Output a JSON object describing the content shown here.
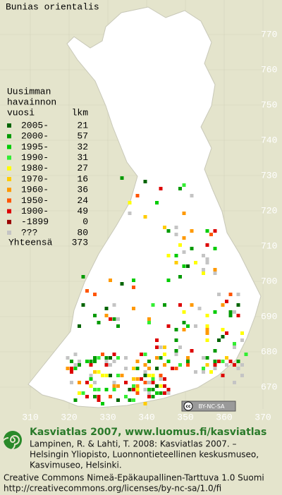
{
  "title": "Bunias orientalis",
  "legend": {
    "heading": [
      "Uusimman",
      "havainnon"
    ],
    "col_year": "vuosi",
    "col_count": "lkm",
    "rows": [
      {
        "label": "2005-",
        "count": 21,
        "color": "#006400"
      },
      {
        "label": "2000-",
        "count": 57,
        "color": "#009a00"
      },
      {
        "label": "1995-",
        "count": 32,
        "color": "#00cc00"
      },
      {
        "label": "1990-",
        "count": 31,
        "color": "#33ee33"
      },
      {
        "label": "1980-",
        "count": 27,
        "color": "#ffff00"
      },
      {
        "label": "1970-",
        "count": 16,
        "color": "#ffcc00"
      },
      {
        "label": "1960-",
        "count": 36,
        "color": "#ff9900"
      },
      {
        "label": "1950-",
        "count": 24,
        "color": "#ff5500"
      },
      {
        "label": "1900-",
        "count": 49,
        "color": "#dd0000"
      },
      {
        "label": "-1899",
        "count": 0,
        "color": "#990000"
      },
      {
        "label": "???",
        "count": 80,
        "color": "#c4c4c4"
      }
    ],
    "total_label": "Yhteensä",
    "total": 373
  },
  "map": {
    "x_labels": [
      310,
      320,
      330,
      340,
      350,
      360,
      370
    ],
    "y_labels": [
      770,
      760,
      750,
      740,
      730,
      720,
      710,
      700,
      690,
      680,
      670
    ]
  },
  "badge": {
    "icon": "cc",
    "text": "BY-NC-SA"
  },
  "footer": {
    "site": "Kasviatlas 2007, www.luomus.fi/kasviatlas",
    "citation": [
      "Lampinen, R. & Lahti, T. 2008: Kasviatlas 2007. –",
      "Helsingin Yliopisto, Luonnontieteellinen keskusmuseo,",
      "Kasvimuseo, Helsinki."
    ],
    "license": [
      "Creative Commons Nimeä-Epäkaupallinen-Tarttuva 1.0 Suomi",
      "http://creativecommons.org/licenses/by-nc-sa/1.0/fi"
    ]
  }
}
